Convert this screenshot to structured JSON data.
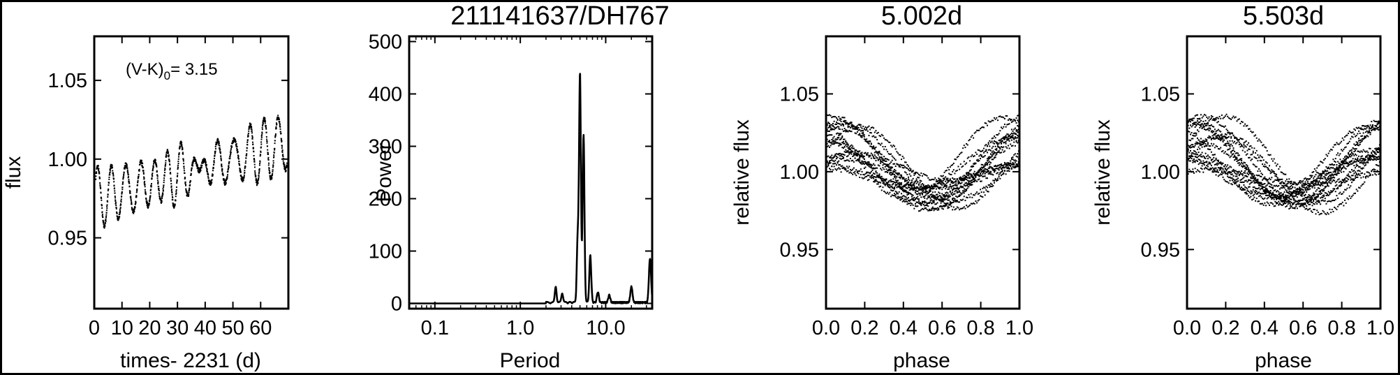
{
  "chart_data": [
    {
      "type": "scatter",
      "title": "",
      "xlabel": "times- 2231 (d)",
      "ylabel": "flux",
      "xlim": [
        0,
        70
      ],
      "ylim": [
        0.905,
        1.078
      ],
      "x_tick_labels": [
        "0",
        "10",
        "20",
        "30",
        "40",
        "50",
        "60"
      ],
      "x_ticks": [
        0,
        10,
        20,
        30,
        40,
        50,
        60
      ],
      "y_ticks": [
        0.95,
        1.0,
        1.05
      ],
      "y_tick_labels": [
        "0.95",
        "1.00",
        "1.05"
      ],
      "annotation_main": "(V-K)",
      "annotation_sub": "0",
      "annotation_value": "= 3.15",
      "series": [
        {
          "periods_days": [
            5.002,
            5.503
          ],
          "amplitudes": [
            0.02,
            0.015
          ],
          "trend": [
            0.975,
            1.01
          ],
          "t_start": 0.5,
          "t_end": 69.5
        }
      ]
    },
    {
      "type": "line",
      "title": "211141637/DH767",
      "xlabel": "Period",
      "ylabel": "Power",
      "xscale": "log",
      "xlim": [
        0.05,
        35
      ],
      "ylim": [
        -10,
        510
      ],
      "x_ticks": [
        0.1,
        1.0,
        10.0
      ],
      "x_tick_labels": [
        "0.1",
        "1.0",
        "10.0"
      ],
      "y_ticks": [
        0,
        100,
        200,
        300,
        400,
        500
      ],
      "y_tick_labels": [
        "0",
        "100",
        "200",
        "300",
        "400",
        "500"
      ],
      "peaks": [
        {
          "period": 2.6,
          "power": 30
        },
        {
          "period": 3.1,
          "power": 18
        },
        {
          "period": 4.7,
          "power": 120
        },
        {
          "period": 5.0,
          "power": 435
        },
        {
          "period": 5.5,
          "power": 320
        },
        {
          "period": 6.6,
          "power": 90
        },
        {
          "period": 8.1,
          "power": 20
        },
        {
          "period": 11.0,
          "power": 14
        },
        {
          "period": 20.0,
          "power": 30
        },
        {
          "period": 33.0,
          "power": 85
        }
      ]
    },
    {
      "type": "scatter",
      "title": "5.002d",
      "xlabel": "phase",
      "ylabel": "relative flux",
      "period_days": 5.002,
      "xlim": [
        0,
        1
      ],
      "ylim": [
        0.912,
        1.087
      ],
      "x_ticks": [
        0.0,
        0.2,
        0.4,
        0.6,
        0.8,
        1.0
      ],
      "x_tick_labels": [
        "0.0",
        "0.2",
        "0.4",
        "0.6",
        "0.8",
        "1.0"
      ],
      "y_ticks": [
        0.95,
        1.0,
        1.05
      ],
      "y_tick_labels": [
        "0.95",
        "1.00",
        "1.05"
      ]
    },
    {
      "type": "scatter",
      "title": "5.503d",
      "xlabel": "phase",
      "ylabel": "relative flux",
      "period_days": 5.503,
      "xlim": [
        0,
        1
      ],
      "ylim": [
        0.912,
        1.087
      ],
      "x_ticks": [
        0.0,
        0.2,
        0.4,
        0.6,
        0.8,
        1.0
      ],
      "x_tick_labels": [
        "0.0",
        "0.2",
        "0.4",
        "0.6",
        "0.8",
        "1.0"
      ],
      "y_ticks": [
        0.95,
        1.0,
        1.05
      ],
      "y_tick_labels": [
        "0.95",
        "1.00",
        "1.05"
      ]
    }
  ]
}
